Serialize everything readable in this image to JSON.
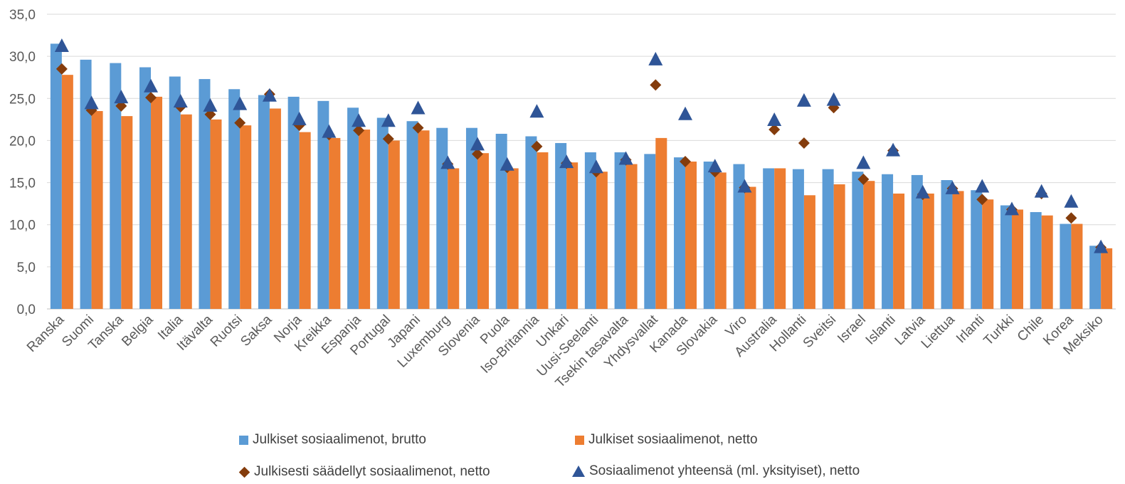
{
  "chart_data": {
    "type": "bar",
    "title": "",
    "xlabel": "",
    "ylabel": "",
    "ylim": [
      0,
      35
    ],
    "yticks": [
      "0,0",
      "5,0",
      "10,0",
      "15,0",
      "20,0",
      "25,0",
      "30,0",
      "35,0"
    ],
    "grid": true,
    "legend_position": "bottom",
    "categories": [
      "Ranska",
      "Suomi",
      "Tanska",
      "Belgia",
      "Italia",
      "Itävalta",
      "Ruotsi",
      "Saksa",
      "Norja",
      "Kreikka",
      "Espanja",
      "Portugal",
      "Japani",
      "Luxemburg",
      "Slovenia",
      "Puola",
      "Iso-Britannia",
      "Unkari",
      "Uusi-Seelanti",
      "Tsekin tasavalta",
      "Yhdysvallat",
      "Kanada",
      "Slovakia",
      "Viro",
      "Australia",
      "Hollanti",
      "Sveitsi",
      "Israel",
      "Islanti",
      "Latvia",
      "Liettua",
      "Irlanti",
      "Turkki",
      "Chile",
      "Korea",
      "Meksiko"
    ],
    "series": [
      {
        "name": "Julkiset sosiaalimenot, brutto",
        "kind": "bar",
        "color": "#5B9BD5",
        "values": [
          31.5,
          29.6,
          29.2,
          28.7,
          27.6,
          27.3,
          26.1,
          25.4,
          25.2,
          24.7,
          23.9,
          22.7,
          22.3,
          21.5,
          21.5,
          20.8,
          20.5,
          19.7,
          18.6,
          18.6,
          18.4,
          18.0,
          17.5,
          17.2,
          16.7,
          16.6,
          16.6,
          16.3,
          16.0,
          15.9,
          15.3,
          14.1,
          12.3,
          11.5,
          10.1,
          7.5
        ]
      },
      {
        "name": "Julkiset sosiaalimenot, netto",
        "kind": "bar",
        "color": "#ED7D31",
        "values": [
          27.8,
          23.5,
          22.9,
          25.2,
          23.1,
          22.5,
          21.8,
          23.8,
          21.0,
          20.3,
          21.3,
          20.0,
          21.2,
          16.7,
          18.5,
          16.7,
          18.6,
          17.4,
          16.3,
          17.2,
          20.3,
          17.5,
          16.2,
          14.5,
          16.7,
          13.5,
          14.8,
          15.2,
          13.7,
          13.7,
          14.0,
          13.0,
          11.8,
          11.1,
          10.1,
          7.2
        ]
      },
      {
        "name": "Julkisesti säädellyt sosiaalimenot, netto",
        "kind": "diamond",
        "color": "#843C0C",
        "values": [
          28.5,
          23.6,
          24.1,
          25.1,
          24.0,
          23.1,
          22.1,
          25.5,
          21.8,
          20.7,
          21.2,
          20.2,
          21.5,
          17.2,
          18.4,
          16.8,
          19.3,
          17.3,
          16.3,
          17.7,
          26.6,
          17.5,
          16.3,
          14.4,
          21.3,
          19.7,
          23.9,
          15.4,
          18.8,
          13.6,
          14.3,
          13.0,
          11.8,
          13.7,
          10.8,
          7.3
        ]
      },
      {
        "name": "Sosiaalimenot yhteensä (ml. yksityiset), netto",
        "kind": "triangle",
        "color": "#2F5597",
        "values": [
          31.2,
          24.4,
          25.1,
          26.4,
          24.6,
          24.1,
          24.3,
          25.3,
          22.5,
          21.0,
          22.3,
          22.3,
          23.8,
          17.3,
          19.5,
          17.1,
          23.4,
          17.4,
          16.8,
          17.8,
          29.6,
          23.1,
          16.9,
          14.5,
          22.4,
          24.7,
          24.8,
          17.3,
          18.8,
          13.8,
          14.3,
          14.5,
          11.8,
          13.9,
          12.7,
          7.3
        ]
      }
    ]
  }
}
